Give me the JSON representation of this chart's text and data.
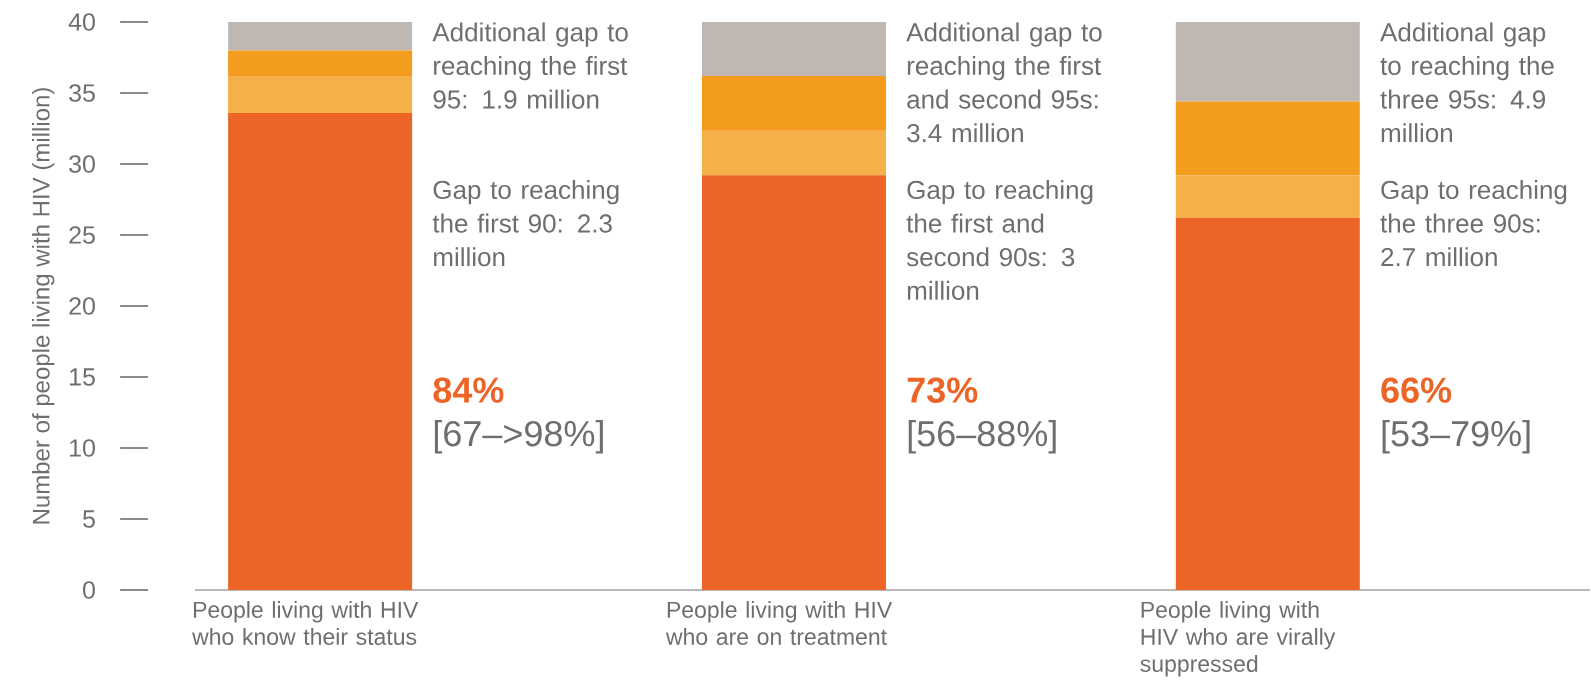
{
  "chart_data": {
    "type": "bar",
    "stacked": true,
    "ylabel": "Number of people living with HIV (million)",
    "categories": [
      "People living with HIV who know their status",
      "People living with HIV who are on treatment",
      "People living with HIV who are virally suppressed"
    ],
    "ylim": [
      0,
      40
    ],
    "yticks": [
      0,
      5,
      10,
      15,
      20,
      25,
      30,
      35,
      40
    ],
    "series": [
      {
        "color": "#ec6526",
        "values": [
          33.6,
          29.2,
          26.2
        ]
      },
      {
        "color": "#f6b04a",
        "values": [
          2.6,
          3.2,
          3.0
        ]
      },
      {
        "color": "#f39c1e",
        "values": [
          1.8,
          3.8,
          5.2
        ]
      },
      {
        "color": "#bfb8b2",
        "values": [
          2.0,
          3.8,
          5.6
        ]
      }
    ],
    "annotations": [
      "Additional gap to reaching the first 95: 1.9 million",
      "Gap to reaching the first 90: 2.3 million",
      "84%",
      "[67–>98%]",
      "Additional gap to reaching the first and second 95s: 3.4 million",
      "Gap to reaching the first and second 90s: 3 million",
      "73%",
      "[56–88%]",
      "Additional gap to reaching the three 95s: 4.9 million",
      "Gap to reaching the three 90s: 2.7 million",
      "66%",
      "[53–79%]"
    ]
  }
}
